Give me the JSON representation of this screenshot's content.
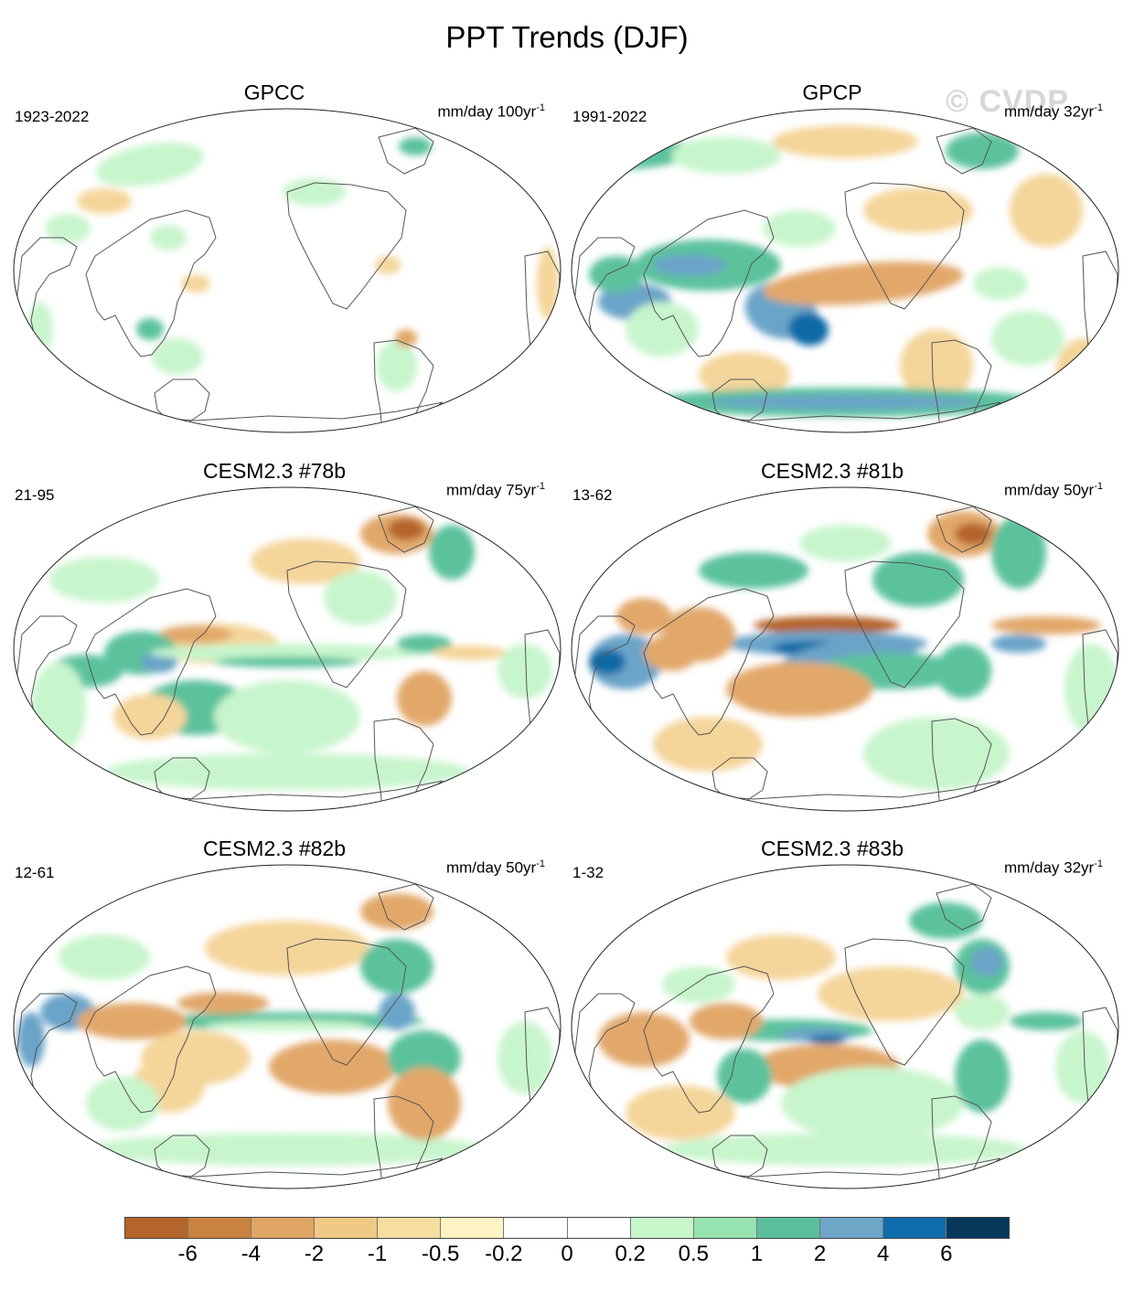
{
  "title": "PPT Trends (DJF)",
  "watermark": "© CVDP",
  "colors": {
    "dry_strong": "#b5652a",
    "dry": "#e2a86a",
    "dry_light": "#f4d59a",
    "neutral": "#ffffff",
    "wet_light": "#c7f5cc",
    "wet": "#5cc29c",
    "wet_strong": "#6aa4c8",
    "wet_extreme": "#0b6aa6",
    "land_outline": "#555555"
  },
  "panels": [
    {
      "title": "GPCC",
      "period": "1923-2022",
      "units": "mm/day 100yr",
      "units_exp": "-1",
      "pattern": "gpcc"
    },
    {
      "title": "GPCP",
      "period": "1991-2022",
      "units": "mm/day 32yr",
      "units_exp": "-1",
      "pattern": "gpcp"
    },
    {
      "title": "CESM2.3 #78b",
      "period": "21-95",
      "units": "mm/day 75yr",
      "units_exp": "-1",
      "pattern": "m78"
    },
    {
      "title": "CESM2.3 #81b",
      "period": "13-62",
      "units": "mm/day 50yr",
      "units_exp": "-1",
      "pattern": "m81"
    },
    {
      "title": "CESM2.3 #82b",
      "period": "12-61",
      "units": "mm/day 50yr",
      "units_exp": "-1",
      "pattern": "m82"
    },
    {
      "title": "CESM2.3 #83b",
      "period": "1-32",
      "units": "mm/day 32yr",
      "units_exp": "-1",
      "pattern": "m83"
    }
  ],
  "colorbar": {
    "colors": [
      "#b3652a",
      "#c9823f",
      "#dea563",
      "#f1c986",
      "#f6de9f",
      "#fdf3c3",
      "#ffffff",
      "#ffffff",
      "#c8f7cc",
      "#96e3b0",
      "#5cbf9c",
      "#6ea6c7",
      "#0e6daa",
      "#06385c"
    ],
    "labels": [
      "-6",
      "-4",
      "-2",
      "-1",
      "-0.5",
      "-0.2",
      "0",
      "0.2",
      "0.5",
      "1",
      "2",
      "4",
      "6"
    ]
  }
}
